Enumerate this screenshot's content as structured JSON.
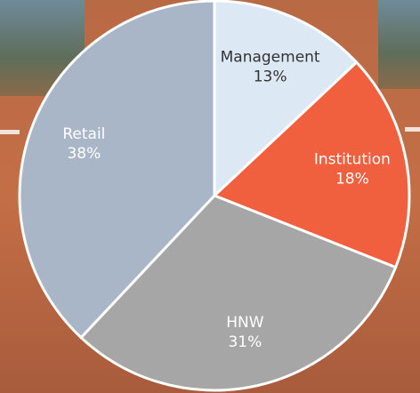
{
  "chart_data": {
    "type": "pie",
    "categories": [
      "Management",
      "Institution",
      "HNW",
      "Retail"
    ],
    "values": [
      13,
      18,
      31,
      38
    ],
    "value_labels": [
      "13%",
      "18%",
      "31%",
      "38%"
    ],
    "colors": [
      "#dde8f5",
      "#f0603f",
      "#a6a6a6",
      "#a9b6c8"
    ]
  }
}
